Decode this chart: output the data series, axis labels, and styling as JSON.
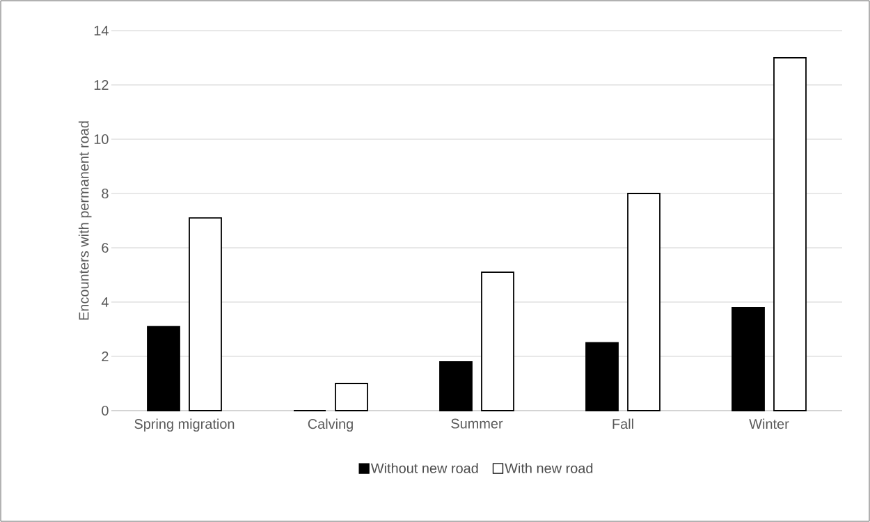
{
  "chart_data": {
    "type": "bar",
    "ylabel": "Encounters with permanent road",
    "categories": [
      "Spring migration",
      "Calving",
      "Summer",
      "Fall",
      "Winter"
    ],
    "series": [
      {
        "name": "Without new road",
        "color": "#000000",
        "values": [
          3.1,
          0,
          1.8,
          2.5,
          3.8
        ]
      },
      {
        "name": "With new road",
        "color": "#ffffff",
        "values": [
          7.1,
          1.0,
          5.1,
          8.0,
          13.0
        ]
      }
    ],
    "ylim": [
      0,
      14
    ],
    "yticks": [
      0,
      2,
      4,
      6,
      8,
      10,
      12,
      14
    ],
    "grid": "y",
    "legend": "bottom"
  }
}
